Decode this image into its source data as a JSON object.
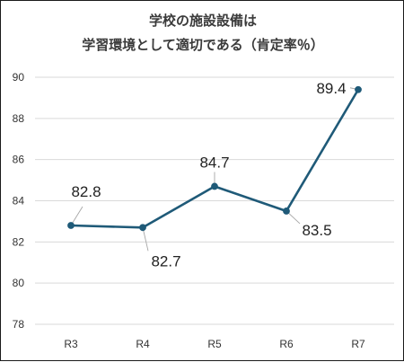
{
  "chart_data": {
    "type": "line",
    "title_lines": [
      "学校の施設設備は",
      "学習環境として適切である（肯定率％）"
    ],
    "xlabel": "",
    "ylabel": "",
    "categories": [
      "R3",
      "R4",
      "R5",
      "R6",
      "R7"
    ],
    "series": [
      {
        "values": [
          82.8,
          82.7,
          84.7,
          83.5,
          89.4
        ]
      }
    ],
    "data_labels": [
      "82.8",
      "82.7",
      "84.7",
      "83.5",
      "89.4"
    ],
    "ylim": [
      78,
      90
    ],
    "yticks": [
      "78",
      "80",
      "82",
      "84",
      "86",
      "88",
      "90"
    ],
    "grid": true,
    "legend": "none",
    "colors": {
      "line": "#1f5a78",
      "grid": "#d9d9d9",
      "leader": "#a6a6a6"
    }
  }
}
